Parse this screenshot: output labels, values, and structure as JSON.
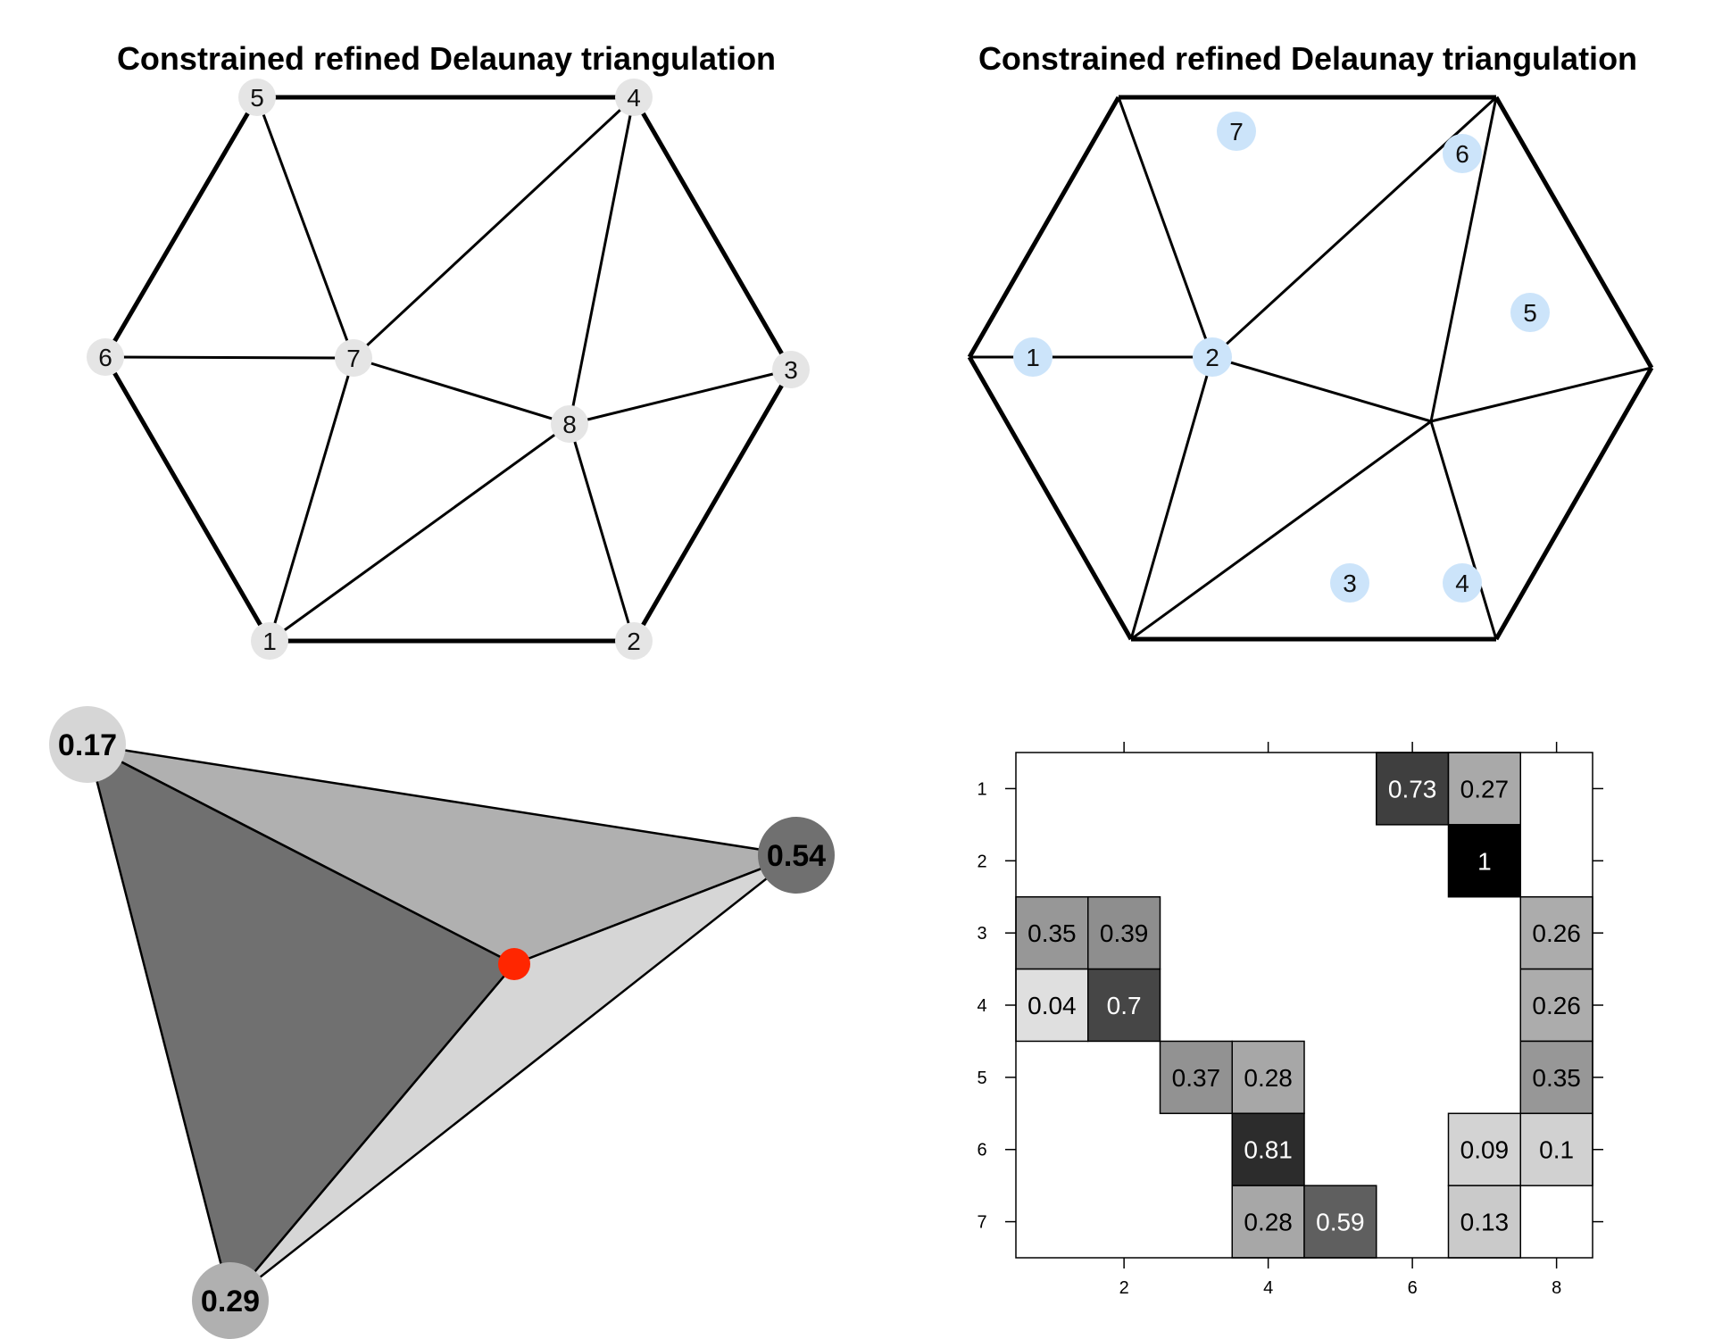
{
  "panels": {
    "top_left": {
      "title": "Constrained refined Delaunay triangulation",
      "node_color": "#e5e5e5",
      "nodes": [
        {
          "label": "1"
        },
        {
          "label": "2"
        },
        {
          "label": "3"
        },
        {
          "label": "4"
        },
        {
          "label": "5"
        },
        {
          "label": "6"
        },
        {
          "label": "7"
        },
        {
          "label": "8"
        }
      ],
      "boundary_edges": [
        [
          "1",
          "2"
        ],
        [
          "2",
          "3"
        ],
        [
          "3",
          "4"
        ],
        [
          "4",
          "5"
        ],
        [
          "5",
          "6"
        ],
        [
          "6",
          "1"
        ]
      ],
      "interior_edges": [
        [
          "5",
          "7"
        ],
        [
          "6",
          "7"
        ],
        [
          "7",
          "1"
        ],
        [
          "7",
          "4"
        ],
        [
          "7",
          "8"
        ],
        [
          "4",
          "8"
        ],
        [
          "8",
          "3"
        ],
        [
          "8",
          "1"
        ],
        [
          "8",
          "2"
        ]
      ]
    },
    "top_right": {
      "title": "Constrained refined Delaunay triangulation",
      "triangle_label_color": "#cce4fa",
      "triangle_labels": [
        "1",
        "2",
        "3",
        "4",
        "5",
        "6",
        "7"
      ]
    },
    "bottom_left": {
      "vertex_labels": [
        "0.17",
        "0.54",
        "0.29"
      ],
      "vertex_colors": [
        "#d6d6d6",
        "#707070",
        "#b0b0b0"
      ],
      "region_colors": [
        "#b0b0b0",
        "#d6d6d6",
        "#707070"
      ],
      "point_color": "#ff2600"
    },
    "bottom_right": {
      "x_ticks": [
        "2",
        "4",
        "6",
        "8"
      ],
      "y_ticks": [
        "1",
        "2",
        "3",
        "4",
        "5",
        "6",
        "7"
      ],
      "chart_data": {
        "type": "heatmap",
        "rows": [
          "1",
          "2",
          "3",
          "4",
          "5",
          "6",
          "7"
        ],
        "columns": [
          "1",
          "2",
          "3",
          "4",
          "5",
          "6",
          "7",
          "8"
        ],
        "cells": [
          {
            "row": 1,
            "col": 6,
            "value": 0.73,
            "label": "0.73"
          },
          {
            "row": 1,
            "col": 7,
            "value": 0.27,
            "label": "0.27"
          },
          {
            "row": 2,
            "col": 7,
            "value": 1,
            "label": "1"
          },
          {
            "row": 3,
            "col": 1,
            "value": 0.35,
            "label": "0.35"
          },
          {
            "row": 3,
            "col": 2,
            "value": 0.39,
            "label": "0.39"
          },
          {
            "row": 3,
            "col": 8,
            "value": 0.26,
            "label": "0.26"
          },
          {
            "row": 4,
            "col": 1,
            "value": 0.04,
            "label": "0.04"
          },
          {
            "row": 4,
            "col": 2,
            "value": 0.7,
            "label": "0.7"
          },
          {
            "row": 4,
            "col": 8,
            "value": 0.26,
            "label": "0.26"
          },
          {
            "row": 5,
            "col": 3,
            "value": 0.37,
            "label": "0.37"
          },
          {
            "row": 5,
            "col": 4,
            "value": 0.28,
            "label": "0.28"
          },
          {
            "row": 5,
            "col": 8,
            "value": 0.35,
            "label": "0.35"
          },
          {
            "row": 6,
            "col": 4,
            "value": 0.81,
            "label": "0.81"
          },
          {
            "row": 6,
            "col": 7,
            "value": 0.09,
            "label": "0.09"
          },
          {
            "row": 6,
            "col": 8,
            "value": 0.1,
            "label": "0.1"
          },
          {
            "row": 7,
            "col": 4,
            "value": 0.28,
            "label": "0.28"
          },
          {
            "row": 7,
            "col": 5,
            "value": 0.59,
            "label": "0.59"
          },
          {
            "row": 7,
            "col": 7,
            "value": 0.13,
            "label": "0.13"
          }
        ]
      }
    }
  }
}
